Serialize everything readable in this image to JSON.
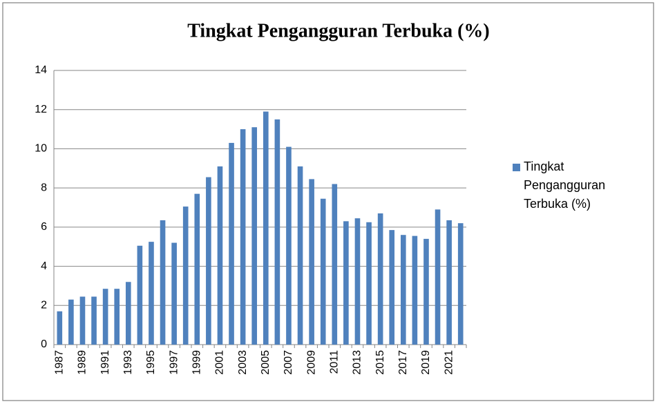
{
  "chart_data": {
    "type": "bar",
    "title": "Tingkat Pengangguran Terbuka (%)",
    "categories": [
      "1987",
      null,
      "1989",
      null,
      "1991",
      null,
      "1993",
      null,
      "1995",
      null,
      "1997",
      null,
      "1999",
      null,
      "2001",
      null,
      "2003",
      null,
      "2005",
      null,
      "2007",
      null,
      "2009",
      null,
      "2011",
      null,
      "2013",
      null,
      "2015",
      null,
      "2017",
      null,
      "2019",
      null,
      "2021",
      null
    ],
    "series": [
      {
        "name": "Tingkat Pengangguran Terbuka (%)",
        "color": "#4f81bd",
        "values": [
          1.7,
          2.3,
          2.45,
          2.45,
          2.85,
          2.85,
          3.2,
          5.05,
          5.25,
          6.35,
          5.2,
          7.05,
          7.7,
          8.55,
          9.1,
          10.3,
          11.0,
          11.1,
          11.9,
          11.5,
          10.1,
          9.1,
          8.45,
          7.45,
          8.2,
          6.3,
          6.45,
          6.25,
          6.7,
          5.85,
          5.6,
          5.55,
          5.4,
          6.9,
          6.35,
          6.2
        ]
      }
    ],
    "ylim": [
      0,
      14
    ],
    "yticks": [
      0,
      2,
      4,
      6,
      8,
      10,
      12,
      14
    ],
    "grid": true,
    "legend": "right"
  }
}
